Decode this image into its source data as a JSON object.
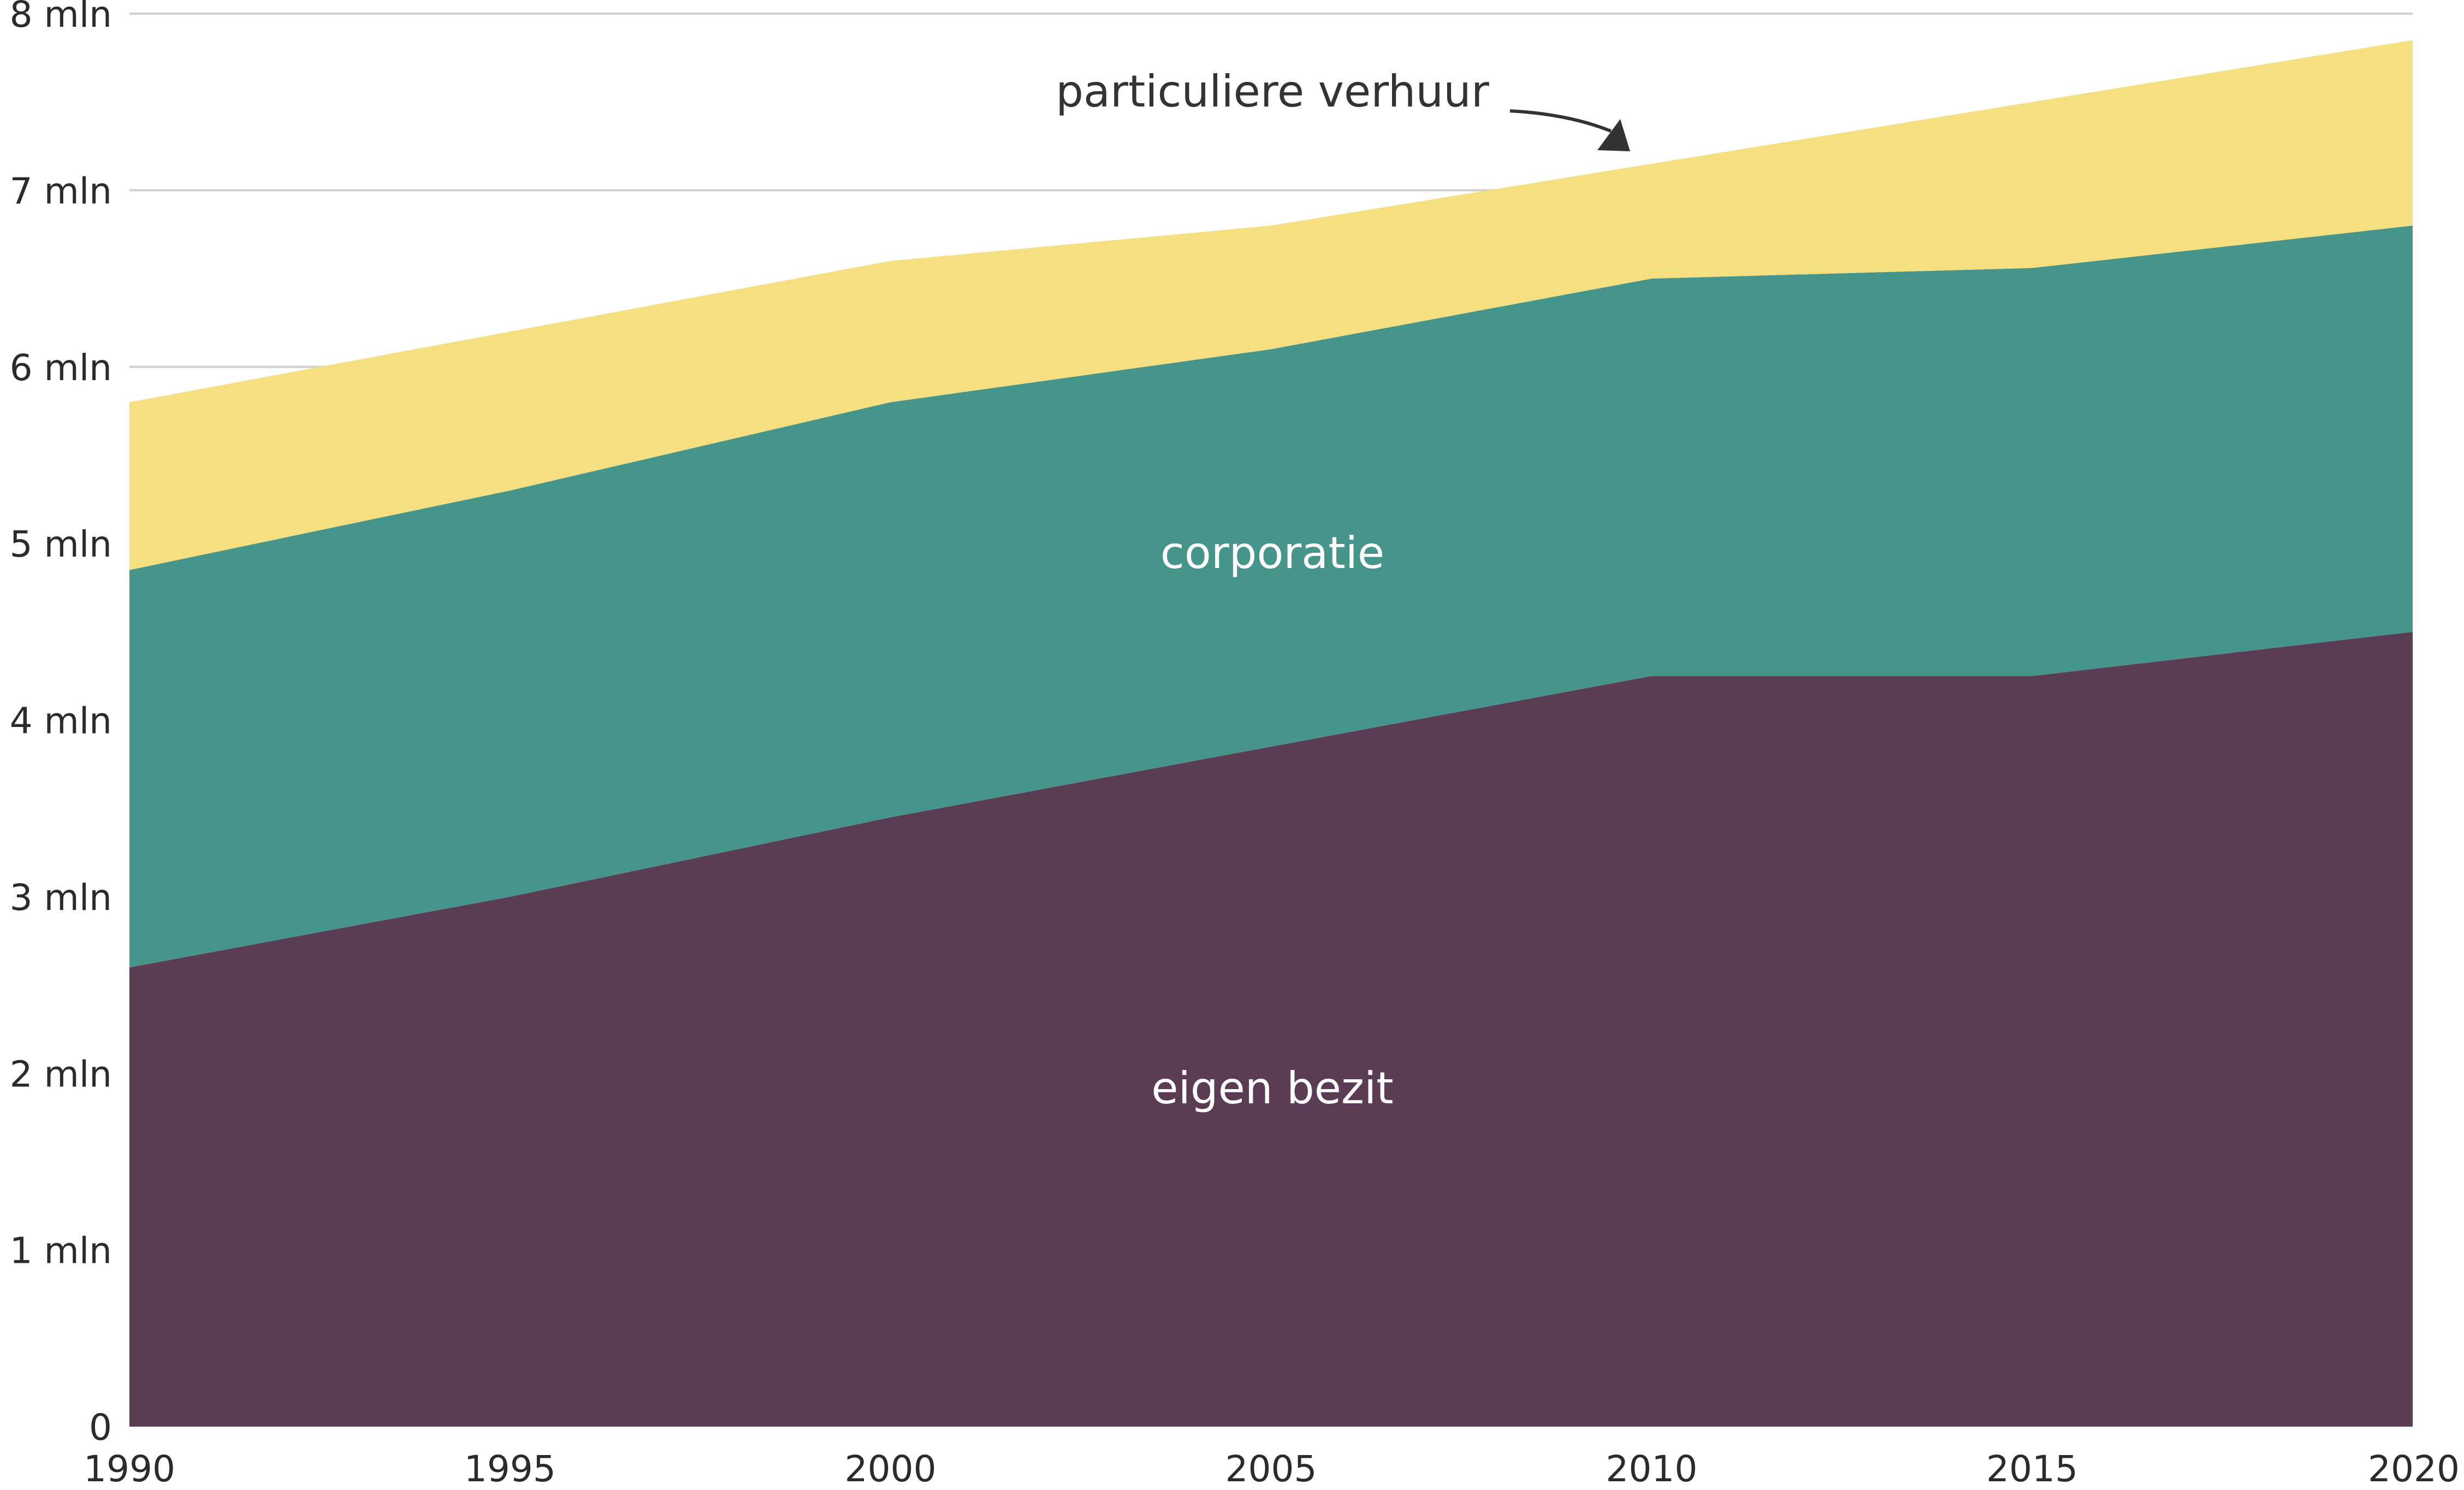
{
  "chart_data": {
    "type": "area",
    "stacked": true,
    "x": [
      1990,
      1995,
      2000,
      2005,
      2010,
      2015,
      2020
    ],
    "series": [
      {
        "name": "eigen bezit",
        "color": "#5b3c55",
        "values": [
          2.6,
          3.0,
          3.45,
          3.85,
          4.25,
          4.25,
          4.5
        ]
      },
      {
        "name": "corporatie",
        "color": "#46958b",
        "values": [
          2.25,
          2.3,
          2.35,
          2.25,
          2.25,
          2.31,
          2.3
        ]
      },
      {
        "name": "particuliere verhuur",
        "color": "#f5df80",
        "values": [
          0.95,
          0.9,
          0.8,
          0.7,
          0.65,
          0.94,
          1.05
        ]
      }
    ],
    "y_ticks": [
      {
        "value": 0,
        "label": "0"
      },
      {
        "value": 1,
        "label": "1 mln"
      },
      {
        "value": 2,
        "label": "2 mln"
      },
      {
        "value": 3,
        "label": "3 mln"
      },
      {
        "value": 4,
        "label": "4 mln"
      },
      {
        "value": 5,
        "label": "5 mln"
      },
      {
        "value": 6,
        "label": "6 mln"
      },
      {
        "value": 7,
        "label": "7 mln"
      },
      {
        "value": 8,
        "label": "8 mln"
      }
    ],
    "x_tick_labels": [
      "1990",
      "1995",
      "2000",
      "2005",
      "2010",
      "2015",
      "2020"
    ],
    "ylim": [
      0,
      8
    ],
    "xlim": [
      1990,
      2020
    ],
    "grid": "horizontal",
    "annotations": [
      {
        "text": "particuliere verhuur",
        "series": "particuliere verhuur",
        "label_color": "#333333",
        "arrow_color": "#333333"
      },
      {
        "text": "corporatie",
        "series": "corporatie",
        "label_color": "#ffffff"
      },
      {
        "text": "eigen bezit",
        "series": "eigen bezit",
        "label_color": "#ffffff"
      }
    ],
    "title": "",
    "xlabel": "",
    "ylabel": ""
  }
}
